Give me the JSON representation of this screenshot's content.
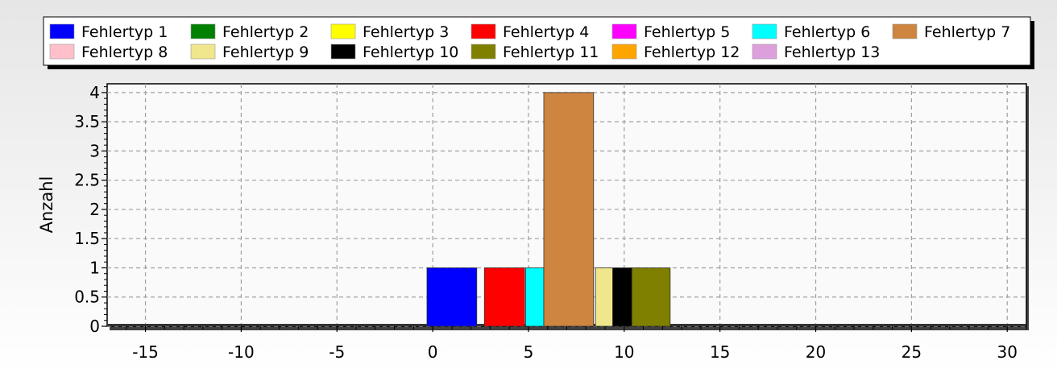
{
  "chart_data": {
    "type": "bar",
    "ylabel": "Anzahl",
    "xlim": [
      -17,
      31
    ],
    "ylim": [
      0,
      4.15
    ],
    "x_ticks": [
      -15,
      -10,
      -5,
      0,
      5,
      10,
      15,
      20,
      25,
      30
    ],
    "y_ticks": [
      0,
      0.5,
      1,
      1.5,
      2,
      2.5,
      3,
      3.5,
      4
    ],
    "grid": true,
    "legend_position": "top",
    "series": [
      {
        "name": "Fehlertyp 1",
        "color": "#0000ff",
        "x_start": -0.3,
        "x_end": 2.3,
        "value": 1
      },
      {
        "name": "Fehlertyp 2",
        "color": "#008000",
        "x_start": 2.3,
        "x_end": 2.6,
        "value": 0
      },
      {
        "name": "Fehlertyp 3",
        "color": "#ffff00",
        "x_start": 2.6,
        "x_end": 2.7,
        "value": 0
      },
      {
        "name": "Fehlertyp 4",
        "color": "#ff0000",
        "x_start": 2.7,
        "x_end": 4.8,
        "value": 1
      },
      {
        "name": "Fehlertyp 5",
        "color": "#ff00ff",
        "x_start": 4.8,
        "x_end": 4.85,
        "value": 0
      },
      {
        "name": "Fehlertyp 6",
        "color": "#00ffff",
        "x_start": 4.85,
        "x_end": 5.8,
        "value": 1
      },
      {
        "name": "Fehlertyp 7",
        "color": "#cd853f",
        "x_start": 5.8,
        "x_end": 8.4,
        "value": 4
      },
      {
        "name": "Fehlertyp 8",
        "color": "#ffc0cb",
        "x_start": 8.4,
        "x_end": 8.5,
        "value": 0
      },
      {
        "name": "Fehlertyp 9",
        "color": "#f0e68c",
        "x_start": 8.5,
        "x_end": 9.4,
        "value": 1
      },
      {
        "name": "Fehlertyp 10",
        "color": "#000000",
        "x_start": 9.4,
        "x_end": 10.4,
        "value": 1
      },
      {
        "name": "Fehlertyp 11",
        "color": "#808000",
        "x_start": 10.4,
        "x_end": 12.4,
        "value": 1
      },
      {
        "name": "Fehlertyp 12",
        "color": "#ffa500",
        "x_start": 12.4,
        "x_end": 12.5,
        "value": 0
      },
      {
        "name": "Fehlertyp 13",
        "color": "#dda0dd",
        "x_start": 12.5,
        "x_end": 12.6,
        "value": 0
      }
    ]
  }
}
